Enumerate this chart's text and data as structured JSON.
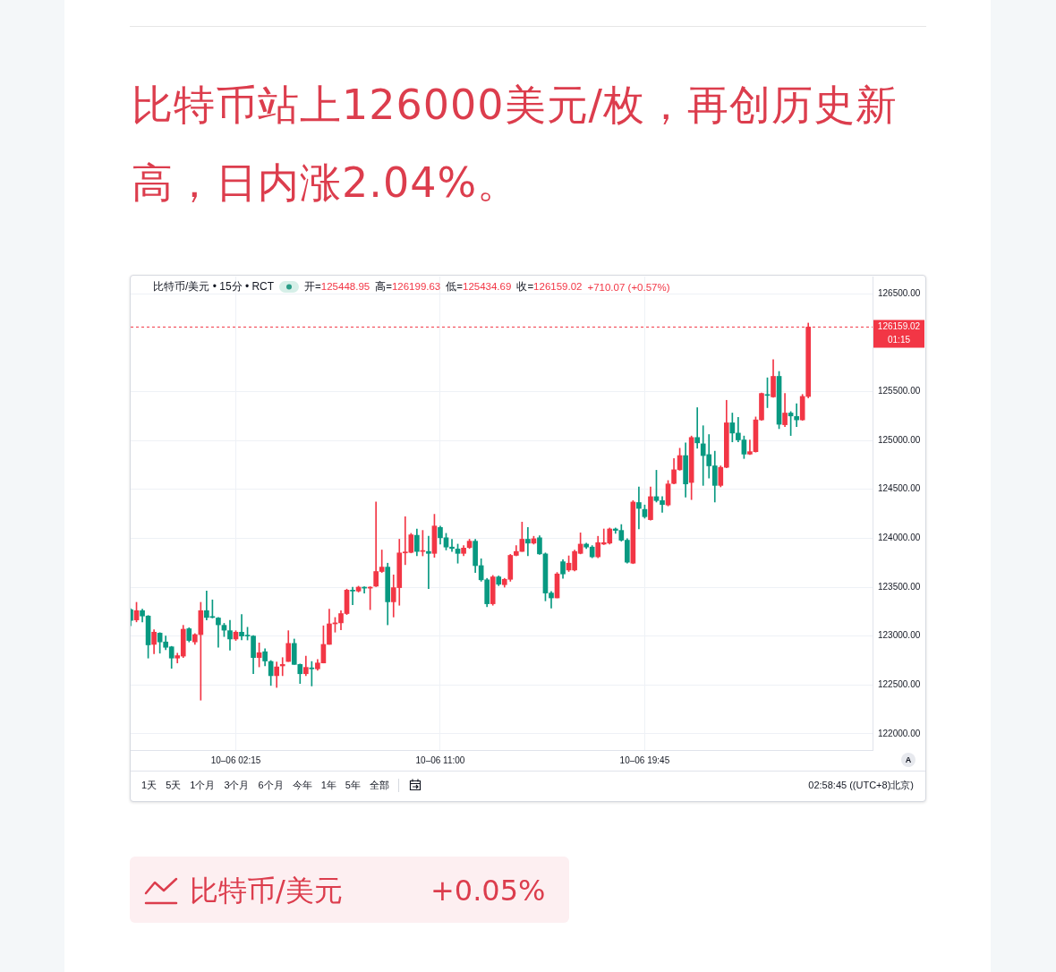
{
  "chart_data": {
    "type": "candlestick",
    "title": "比特币站上126000美元/枚，再创历史新高，日内涨2.04%。",
    "subtitle": "比特币/美元 • 15分 • RCT",
    "categories": [
      null,
      null,
      null,
      null,
      null,
      null,
      null,
      null,
      null,
      null,
      null,
      null,
      null,
      null,
      null,
      null,
      null,
      null,
      "10–06 02:15",
      null,
      null,
      null,
      null,
      null,
      null,
      null,
      null,
      null,
      null,
      null,
      null,
      null,
      null,
      null,
      null,
      null,
      null,
      null,
      null,
      null,
      null,
      null,
      null,
      null,
      null,
      null,
      null,
      null,
      null,
      null,
      null,
      null,
      null,
      "10–06 11:00",
      null,
      null,
      null,
      null,
      null,
      null,
      null,
      null,
      null,
      null,
      null,
      null,
      null,
      null,
      null,
      null,
      null,
      null,
      null,
      null,
      null,
      null,
      null,
      null,
      null,
      null,
      null,
      null,
      null,
      null,
      null,
      null,
      null,
      null,
      "10–06 19:45",
      null,
      null,
      null,
      null,
      null,
      null,
      null,
      null,
      null,
      null,
      null,
      null,
      null,
      null,
      null,
      null,
      null,
      null,
      null,
      null,
      null,
      null,
      null,
      null,
      null,
      null,
      null,
      null,
      null,
      null,
      null,
      null,
      null,
      null,
      null,
      null,
      null,
      null,
      null
    ],
    "ohlc": [
      [
        123270,
        123280,
        123105,
        123160
      ],
      [
        123165,
        123345,
        123145,
        123260
      ],
      [
        123260,
        123275,
        123145,
        123205
      ],
      [
        123205,
        123210,
        122775,
        122910
      ],
      [
        122915,
        123065,
        122820,
        123040
      ],
      [
        123030,
        123035,
        122825,
        122940
      ],
      [
        122940,
        123000,
        122860,
        122885
      ],
      [
        122890,
        122895,
        122670,
        122775
      ],
      [
        122775,
        122825,
        122725,
        122800
      ],
      [
        122795,
        123110,
        122780,
        123070
      ],
      [
        123075,
        123085,
        122940,
        122955
      ],
      [
        122940,
        123025,
        122915,
        123015
      ],
      [
        123015,
        123345,
        122345,
        123260
      ],
      [
        123260,
        123460,
        123165,
        123190
      ],
      [
        123200,
        123370,
        123185,
        123190
      ],
      [
        123185,
        123190,
        122885,
        123115
      ],
      [
        123110,
        123130,
        122995,
        123060
      ],
      [
        123055,
        123160,
        122855,
        122970
      ],
      [
        122970,
        123055,
        122955,
        123040
      ],
      [
        123040,
        123220,
        122960,
        123000
      ],
      [
        123005,
        123090,
        122960,
        123000
      ],
      [
        123000,
        123005,
        122615,
        122780
      ],
      [
        122780,
        122930,
        122685,
        122830
      ],
      [
        122840,
        122870,
        122695,
        122745
      ],
      [
        122740,
        122750,
        122495,
        122595
      ],
      [
        122595,
        122735,
        122475,
        122685
      ],
      [
        122695,
        122780,
        122595,
        122710
      ],
      [
        122740,
        123055,
        122740,
        122925
      ],
      [
        122925,
        122970,
        122710,
        122710
      ],
      [
        122710,
        122715,
        122515,
        122615
      ],
      [
        122615,
        122795,
        122595,
        122680
      ],
      [
        122675,
        122740,
        122490,
        122665
      ],
      [
        122665,
        122760,
        122650,
        122725
      ],
      [
        122725,
        123105,
        122725,
        122915
      ],
      [
        122915,
        123275,
        122915,
        123125
      ],
      [
        123125,
        123190,
        123040,
        123135
      ],
      [
        123135,
        123260,
        123065,
        123230
      ],
      [
        123230,
        123480,
        123220,
        123470
      ],
      [
        123470,
        123500,
        123320,
        123460
      ],
      [
        123460,
        123510,
        123450,
        123500
      ],
      [
        123500,
        123505,
        123440,
        123490
      ],
      [
        123490,
        123505,
        123270,
        123500
      ],
      [
        123510,
        124370,
        123505,
        123660
      ],
      [
        123660,
        123880,
        123650,
        123705
      ],
      [
        123705,
        123745,
        123115,
        123350
      ],
      [
        123350,
        123625,
        123195,
        123495
      ],
      [
        123495,
        123990,
        123315,
        123850
      ],
      [
        123850,
        124220,
        123730,
        123860
      ],
      [
        123855,
        124050,
        123850,
        124035
      ],
      [
        124030,
        124095,
        123820,
        123865
      ],
      [
        123865,
        124080,
        123820,
        123870
      ],
      [
        123865,
        124020,
        123485,
        123845
      ],
      [
        123845,
        124245,
        123805,
        124125
      ],
      [
        124110,
        124125,
        123940,
        124005
      ],
      [
        124005,
        124050,
        123880,
        123910
      ],
      [
        123910,
        123990,
        123865,
        123895
      ],
      [
        123890,
        123940,
        123745,
        123845
      ],
      [
        123845,
        123925,
        123820,
        123900
      ],
      [
        123905,
        123990,
        123895,
        123970
      ],
      [
        123970,
        123990,
        123650,
        123720
      ],
      [
        123720,
        123790,
        123560,
        123575
      ],
      [
        123575,
        123590,
        123300,
        123330
      ],
      [
        123330,
        123620,
        123315,
        123605
      ],
      [
        123605,
        123615,
        123515,
        123530
      ],
      [
        123525,
        123590,
        123500,
        123580
      ],
      [
        123580,
        123835,
        123560,
        123825
      ],
      [
        123825,
        123925,
        123820,
        123865
      ],
      [
        123865,
        124165,
        123865,
        123990
      ],
      [
        123990,
        124110,
        123820,
        123950
      ],
      [
        123950,
        124020,
        123940,
        123995
      ],
      [
        124005,
        124025,
        123835,
        123840
      ],
      [
        123840,
        123850,
        123360,
        123440
      ],
      [
        123440,
        123455,
        123285,
        123390
      ],
      [
        123390,
        123650,
        123390,
        123635
      ],
      [
        123760,
        123780,
        123590,
        123635
      ],
      [
        123675,
        123820,
        123660,
        123745
      ],
      [
        123675,
        123880,
        123665,
        123865
      ],
      [
        123845,
        124055,
        123840,
        123940
      ],
      [
        123940,
        123950,
        123895,
        123910
      ],
      [
        123910,
        123925,
        123800,
        123810
      ],
      [
        123810,
        124020,
        123800,
        123955
      ],
      [
        123940,
        124095,
        123935,
        123955
      ],
      [
        123950,
        124105,
        123940,
        124095
      ],
      [
        124095,
        124105,
        124050,
        124080
      ],
      [
        124080,
        124140,
        123970,
        123980
      ],
      [
        123980,
        123995,
        123745,
        123755
      ],
      [
        123745,
        124385,
        123740,
        124370
      ],
      [
        124365,
        124525,
        124095,
        124305
      ],
      [
        124295,
        124340,
        124205,
        124220
      ],
      [
        124190,
        124525,
        124185,
        124425
      ],
      [
        124425,
        124695,
        124370,
        124385
      ],
      [
        124385,
        124425,
        124265,
        124345
      ],
      [
        124340,
        124590,
        124330,
        124555
      ],
      [
        124560,
        124815,
        124555,
        124700
      ],
      [
        124700,
        124920,
        124695,
        124845
      ],
      [
        124845,
        124975,
        124420,
        124555
      ],
      [
        124570,
        125045,
        124395,
        125030
      ],
      [
        125030,
        125335,
        124920,
        124975
      ],
      [
        124965,
        125150,
        124540,
        124845
      ],
      [
        124855,
        125060,
        124615,
        124740
      ],
      [
        124740,
        124890,
        124370,
        124540
      ],
      [
        124540,
        124740,
        124525,
        124725
      ],
      [
        124725,
        125410,
        124720,
        125180
      ],
      [
        125180,
        125280,
        124985,
        125075
      ],
      [
        125075,
        125235,
        124985,
        125005
      ],
      [
        125005,
        125045,
        124815,
        124860
      ],
      [
        124860,
        125005,
        124855,
        124885
      ],
      [
        124885,
        125240,
        124880,
        125210
      ],
      [
        125210,
        125485,
        125205,
        125480
      ],
      [
        125465,
        125640,
        125335,
        125460
      ],
      [
        125445,
        125825,
        125440,
        125655
      ],
      [
        125655,
        125705,
        125120,
        125165
      ],
      [
        125160,
        125480,
        125140,
        125280
      ],
      [
        125280,
        125295,
        125050,
        125250
      ],
      [
        125245,
        125375,
        125140,
        125210
      ],
      [
        125210,
        125470,
        125205,
        125450
      ],
      [
        125448.95,
        126199.63,
        125434.69,
        126159.02
      ],
      null,
      null,
      null,
      null,
      null,
      null,
      null,
      null,
      null,
      null,
      null
    ],
    "colors": [
      "#089981",
      "#f23645",
      "#089981",
      "#089981",
      "#f23645",
      "#089981",
      "#089981",
      "#089981",
      "#f23645",
      "#f23645",
      "#089981",
      "#f23645",
      "#f23645",
      "#089981",
      "#089981",
      "#089981",
      "#089981",
      "#089981",
      "#f23645",
      "#089981",
      "#089981",
      "#089981",
      "#f23645",
      "#089981",
      "#089981",
      "#f23645",
      "#f23645",
      "#f23645",
      "#089981",
      "#089981",
      "#f23645",
      "#089981",
      "#f23645",
      "#f23645",
      "#f23645",
      "#f23645",
      "#f23645",
      "#f23645",
      "#089981",
      "#f23645",
      "#089981",
      "#f23645",
      "#f23645",
      "#f23645",
      "#089981",
      "#f23645",
      "#f23645",
      "#f23645",
      "#f23645",
      "#089981",
      "#f23645",
      "#089981",
      "#f23645",
      "#089981",
      "#089981",
      "#089981",
      "#089981",
      "#f23645",
      "#f23645",
      "#089981",
      "#089981",
      "#089981",
      "#f23645",
      "#089981",
      "#f23645",
      "#f23645",
      "#f23645",
      "#f23645",
      "#089981",
      "#f23645",
      "#089981",
      "#089981",
      "#089981",
      "#f23645",
      "#089981",
      "#f23645",
      "#f23645",
      "#f23645",
      "#089981",
      "#089981",
      "#f23645",
      "#f23645",
      "#f23645",
      "#089981",
      "#089981",
      "#089981",
      "#f23645",
      "#089981",
      "#089981",
      "#f23645",
      "#089981",
      "#089981",
      "#f23645",
      "#f23645",
      "#f23645",
      "#089981",
      "#f23645",
      "#089981",
      "#089981",
      "#089981",
      "#089981",
      "#f23645",
      "#f23645",
      "#089981",
      "#089981",
      "#089981",
      "#f23645",
      "#f23645",
      "#f23645",
      "#089981",
      "#f23645",
      "#089981",
      "#f23645",
      "#089981",
      "#089981",
      "#f23645",
      "#f23645",
      null,
      null,
      null,
      null,
      null,
      null,
      null,
      null,
      null,
      null,
      null
    ],
    "ylim": [
      121835,
      126675
    ],
    "yticks": [
      {
        "value": 122000,
        "label": "122000.00"
      },
      {
        "value": 122500,
        "label": "122500.00"
      },
      {
        "value": 123000,
        "label": "123000.00"
      },
      {
        "value": 123500,
        "label": "123500.00"
      },
      {
        "value": 124000,
        "label": "124000.00"
      },
      {
        "value": 124500,
        "label": "124500.00"
      },
      {
        "value": 125000,
        "label": "125000.00"
      },
      {
        "value": 125500,
        "label": "125500.00"
      },
      {
        "value": 126500,
        "label": "126500.00"
      }
    ],
    "grid": true,
    "ref_lines": [
      {
        "axis": "y",
        "value": 126159.02,
        "label": "126159.02",
        "color": "#f23645",
        "line_style": "dashed"
      }
    ],
    "annotations": [
      "开=125448.95",
      "高=126199.63",
      "低=125434.69",
      "收=126159.02",
      "+710.07 (+0.57%)",
      "01:15",
      "A",
      "1天",
      "5天",
      "1个月",
      "3个月",
      "6个月",
      "今年",
      "1年",
      "5年",
      "全部",
      "02:58:45 ((UTC+8)北京)",
      "比特币/美元",
      "+0.05%"
    ]
  }
}
